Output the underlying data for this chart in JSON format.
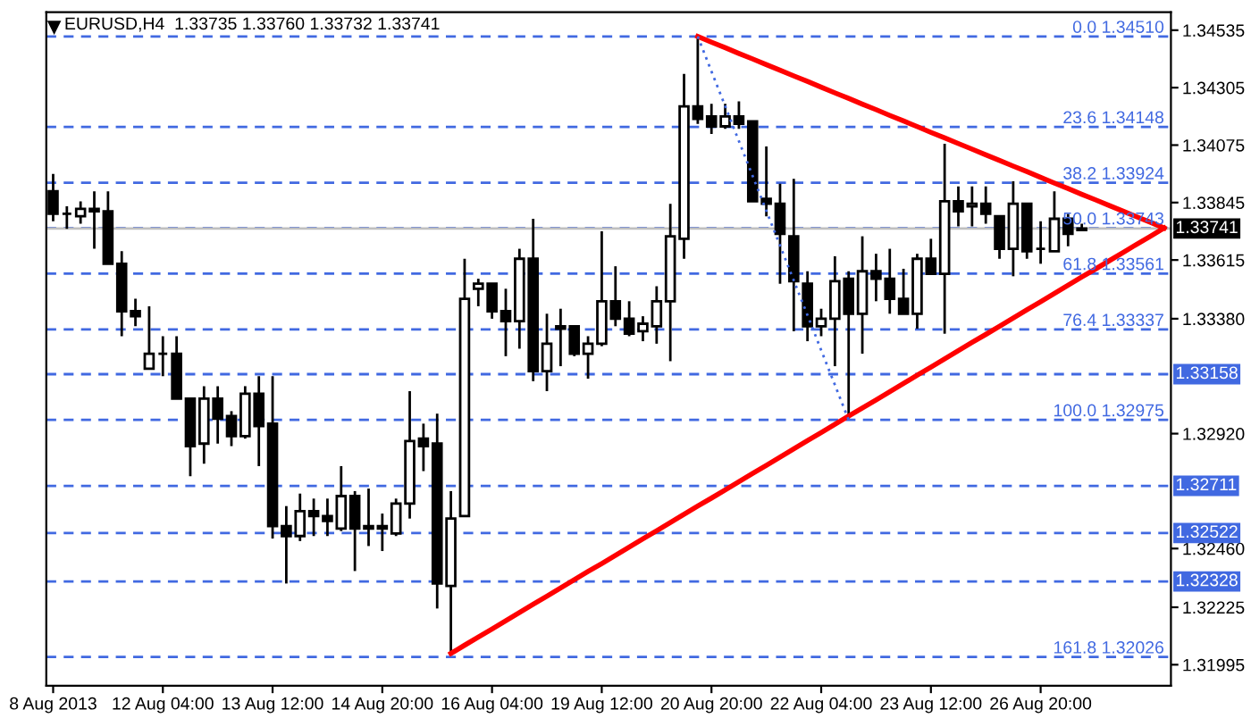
{
  "chart_data": {
    "type": "candlestick",
    "title": "EURUSD,H4  1.33735 1.33760 1.33732 1.33741",
    "categories": [
      "8 Aug 2013",
      null,
      null,
      null,
      null,
      null,
      null,
      null,
      "12 Aug 04:00",
      null,
      null,
      null,
      null,
      null,
      null,
      null,
      "13 Aug 12:00",
      null,
      null,
      null,
      null,
      null,
      null,
      null,
      "14 Aug 20:00",
      null,
      null,
      null,
      null,
      null,
      null,
      null,
      "16 Aug 04:00",
      null,
      null,
      null,
      null,
      null,
      null,
      null,
      "19 Aug 12:00",
      null,
      null,
      null,
      null,
      null,
      null,
      null,
      "20 Aug 20:00",
      null,
      null,
      null,
      null,
      null,
      null,
      null,
      "22 Aug 04:00",
      null,
      null,
      null,
      null,
      null,
      null,
      null,
      "23 Aug 12:00",
      null,
      null,
      null,
      null,
      null,
      null,
      null,
      "26 Aug 20:00",
      null,
      null,
      null,
      null,
      null,
      null,
      null,
      null,
      null
    ],
    "ohlc": [
      [
        1.3389,
        1.3396,
        1.3377,
        1.338
      ],
      [
        1.338,
        1.3383,
        1.3374,
        1.338
      ],
      [
        1.3379,
        1.3385,
        1.3376,
        1.3382
      ],
      [
        1.3382,
        1.3389,
        1.3366,
        1.3381
      ],
      [
        1.3381,
        1.3389,
        1.336,
        1.336
      ],
      [
        1.336,
        1.3365,
        1.3331,
        1.3341
      ],
      [
        1.3341,
        1.3346,
        1.3335,
        1.3339
      ],
      [
        1.3318,
        1.3343,
        1.3318,
        1.3324
      ],
      [
        1.3324,
        1.3331,
        1.3315,
        1.3324
      ],
      [
        1.3324,
        1.3331,
        1.3306,
        1.3306
      ],
      [
        1.3306,
        1.3306,
        1.3275,
        1.3287
      ],
      [
        1.3288,
        1.3311,
        1.328,
        1.3306
      ],
      [
        1.3306,
        1.3311,
        1.3288,
        1.3298
      ],
      [
        1.3299,
        1.3301,
        1.3287,
        1.3291
      ],
      [
        1.3291,
        1.3311,
        1.329,
        1.3308
      ],
      [
        1.3308,
        1.3315,
        1.3279,
        1.3295
      ],
      [
        1.3296,
        1.3315,
        1.325,
        1.3255
      ],
      [
        1.3255,
        1.3263,
        1.3232,
        1.3251
      ],
      [
        1.3251,
        1.3268,
        1.3249,
        1.3261
      ],
      [
        1.3261,
        1.3266,
        1.3251,
        1.3259
      ],
      [
        1.3259,
        1.3266,
        1.3251,
        1.3257
      ],
      [
        1.3254,
        1.3279,
        1.3253,
        1.3267
      ],
      [
        1.3267,
        1.3269,
        1.3237,
        1.3254
      ],
      [
        1.3255,
        1.327,
        1.3247,
        1.3254
      ],
      [
        1.3255,
        1.326,
        1.3245,
        1.3254
      ],
      [
        1.3252,
        1.3266,
        1.3251,
        1.3264
      ],
      [
        1.3264,
        1.3309,
        1.3258,
        1.3289
      ],
      [
        1.329,
        1.3296,
        1.3277,
        1.3287
      ],
      [
        1.3288,
        1.33,
        1.3222,
        1.3232
      ],
      [
        1.3231,
        1.3269,
        1.3204,
        1.3258
      ],
      [
        1.3259,
        1.3362,
        1.3259,
        1.3346
      ],
      [
        1.335,
        1.3354,
        1.3343,
        1.3352
      ],
      [
        1.3352,
        1.3352,
        1.3338,
        1.3341
      ],
      [
        1.3341,
        1.335,
        1.3323,
        1.3337
      ],
      [
        1.3337,
        1.3366,
        1.3326,
        1.3362
      ],
      [
        1.3362,
        1.3378,
        1.3313,
        1.3317
      ],
      [
        1.3317,
        1.334,
        1.3309,
        1.3328
      ],
      [
        1.3335,
        1.3342,
        1.3319,
        1.3334
      ],
      [
        1.3335,
        1.3335,
        1.3323,
        1.3324
      ],
      [
        1.3324,
        1.3331,
        1.3314,
        1.3328
      ],
      [
        1.3328,
        1.3373,
        1.3327,
        1.3345
      ],
      [
        1.3345,
        1.3359,
        1.3335,
        1.3338
      ],
      [
        1.3338,
        1.3345,
        1.3331,
        1.3332
      ],
      [
        1.3333,
        1.3339,
        1.3329,
        1.3336
      ],
      [
        1.3335,
        1.3351,
        1.3328,
        1.3345
      ],
      [
        1.3345,
        1.3384,
        1.3321,
        1.3371
      ],
      [
        1.337,
        1.3436,
        1.3362,
        1.3423
      ],
      [
        1.3423,
        1.3451,
        1.3416,
        1.3418
      ],
      [
        1.3419,
        1.3424,
        1.3412,
        1.3415
      ],
      [
        1.3415,
        1.3424,
        1.3414,
        1.3419
      ],
      [
        1.3419,
        1.3425,
        1.3414,
        1.3416
      ],
      [
        1.3417,
        1.3417,
        1.3385,
        1.3385
      ],
      [
        1.3386,
        1.3407,
        1.3379,
        1.3384
      ],
      [
        1.3384,
        1.3392,
        1.3352,
        1.3372
      ],
      [
        1.3371,
        1.3394,
        1.3333,
        1.3353
      ],
      [
        1.3352,
        1.3357,
        1.3329,
        1.3335
      ],
      [
        1.3335,
        1.3342,
        1.3331,
        1.3338
      ],
      [
        1.3338,
        1.3363,
        1.3319,
        1.3353
      ],
      [
        1.3354,
        1.3357,
        1.3298,
        1.334
      ],
      [
        1.334,
        1.3371,
        1.3324,
        1.3357
      ],
      [
        1.3357,
        1.3364,
        1.3345,
        1.3354
      ],
      [
        1.3354,
        1.3366,
        1.334,
        1.3346
      ],
      [
        1.3346,
        1.3358,
        1.334,
        1.334
      ],
      [
        1.334,
        1.3364,
        1.3334,
        1.3362
      ],
      [
        1.3362,
        1.337,
        1.3356,
        1.3356
      ],
      [
        1.3356,
        1.3408,
        1.3332,
        1.3385
      ],
      [
        1.3385,
        1.3391,
        1.3375,
        1.3381
      ],
      [
        1.3383,
        1.3391,
        1.3375,
        1.3384
      ],
      [
        1.3384,
        1.3391,
        1.3376,
        1.338
      ],
      [
        1.3379,
        1.3379,
        1.3362,
        1.3366
      ],
      [
        1.3366,
        1.3393,
        1.3355,
        1.3384
      ],
      [
        1.3384,
        1.3384,
        1.3362,
        1.3365
      ],
      [
        1.3366,
        1.3377,
        1.336,
        1.3366
      ],
      [
        1.3365,
        1.3389,
        1.3365,
        1.3378
      ],
      [
        1.3378,
        1.338,
        1.3367,
        1.3372
      ],
      [
        1.33735,
        1.3376,
        1.33732,
        1.33741
      ],
      null,
      null,
      null,
      null,
      null,
      null
    ],
    "series": [
      {
        "type": "line",
        "color": "#ff0000",
        "line_style": "solid",
        "values": [
          null,
          null,
          null,
          null,
          null,
          null,
          null,
          null,
          null,
          null,
          null,
          null,
          null,
          null,
          null,
          null,
          null,
          null,
          null,
          null,
          null,
          null,
          null,
          null,
          null,
          null,
          null,
          null,
          null,
          1.3204,
          1.32073,
          1.32106,
          1.32138,
          1.32171,
          1.32204,
          1.32237,
          1.32269,
          1.32302,
          1.32335,
          1.32368,
          1.324,
          1.32433,
          1.32466,
          1.32499,
          1.32531,
          1.32564,
          1.32597,
          1.3263,
          1.32662,
          1.32695,
          1.32728,
          1.32761,
          1.32793,
          1.32826,
          1.32859,
          1.32892,
          1.32924,
          1.32957,
          1.3299,
          1.33023,
          1.33055,
          1.33088,
          1.33121,
          1.33154,
          1.33186,
          1.33219,
          1.33252,
          1.33285,
          1.33317,
          1.3335,
          1.33383,
          1.33416,
          1.33448,
          1.33481,
          1.33514,
          1.33547,
          1.33579,
          1.33612,
          1.33645,
          1.33678,
          1.3371,
          1.33743
        ]
      },
      {
        "type": "line",
        "color": "#ff0000",
        "line_style": "solid",
        "values": [
          null,
          null,
          null,
          null,
          null,
          null,
          null,
          null,
          null,
          null,
          null,
          null,
          null,
          null,
          null,
          null,
          null,
          null,
          null,
          null,
          null,
          null,
          null,
          null,
          null,
          null,
          null,
          null,
          null,
          null,
          null,
          null,
          null,
          null,
          null,
          null,
          null,
          null,
          null,
          null,
          null,
          null,
          null,
          null,
          null,
          null,
          null,
          1.3451,
          1.34487,
          1.34465,
          1.34442,
          1.3442,
          1.34397,
          1.34375,
          1.34352,
          1.3433,
          1.34307,
          1.34284,
          1.34262,
          1.34239,
          1.34217,
          1.34194,
          1.34172,
          1.34149,
          1.34126,
          1.34104,
          1.34081,
          1.34059,
          1.34036,
          1.34014,
          1.33991,
          1.33969,
          1.33946,
          1.33923,
          1.33901,
          1.33878,
          1.33856,
          1.33833,
          1.33811,
          1.33788,
          1.33766,
          1.33743
        ]
      },
      {
        "type": "line",
        "color": "#4169e1",
        "line_style": "dotted",
        "values": [
          null,
          null,
          null,
          null,
          null,
          null,
          null,
          null,
          null,
          null,
          null,
          null,
          null,
          null,
          null,
          null,
          null,
          null,
          null,
          null,
          null,
          null,
          null,
          null,
          null,
          null,
          null,
          null,
          null,
          null,
          null,
          null,
          null,
          null,
          null,
          null,
          null,
          null,
          null,
          null,
          null,
          null,
          null,
          null,
          null,
          null,
          null,
          1.3451,
          1.3437,
          1.34231,
          1.34091,
          1.33952,
          1.33812,
          1.33673,
          1.33533,
          1.33394,
          1.33254,
          1.33115,
          1.32975,
          null,
          null,
          null,
          null,
          null,
          null,
          null,
          null,
          null,
          null,
          null,
          null,
          null,
          null,
          null,
          null,
          null,
          null,
          null,
          null,
          null,
          null,
          null
        ]
      }
    ],
    "annotations": [
      {
        "text": "0.0 1.34510",
        "y": 1.3451
      },
      {
        "text": "23.6 1.34148",
        "y": 1.34148
      },
      {
        "text": "38.2 1.33924",
        "y": 1.33924
      },
      {
        "text": "50.0 1.33743",
        "y": 1.33743
      },
      {
        "text": "61.8 1.33561",
        "y": 1.33561
      },
      {
        "text": "76.4 1.33337",
        "y": 1.33337
      },
      {
        "text": "100.0 1.32975",
        "y": 1.32975
      },
      {
        "text": "161.8 1.32026",
        "y": 1.32026
      }
    ],
    "ref_lines": [
      {
        "axis": "y",
        "value": 1.3451,
        "color": "#4169e1",
        "line_style": "dashed"
      },
      {
        "axis": "y",
        "value": 1.34148,
        "color": "#4169e1",
        "line_style": "dashed"
      },
      {
        "axis": "y",
        "value": 1.33924,
        "color": "#4169e1",
        "line_style": "dashed"
      },
      {
        "axis": "y",
        "value": 1.33743,
        "color": "#4169e1",
        "line_style": "dashed"
      },
      {
        "axis": "y",
        "value": 1.33561,
        "color": "#4169e1",
        "line_style": "dashed"
      },
      {
        "axis": "y",
        "value": 1.33337,
        "color": "#4169e1",
        "line_style": "dashed"
      },
      {
        "axis": "y",
        "value": 1.32975,
        "color": "#4169e1",
        "line_style": "dashed"
      },
      {
        "axis": "y",
        "value": 1.32026,
        "color": "#4169e1",
        "line_style": "dashed"
      },
      {
        "axis": "y",
        "value": 1.33741,
        "label": "1.33741",
        "color": "#c0c0c0",
        "line_style": "solid"
      },
      {
        "axis": "y",
        "value": 1.33158,
        "label": "1.33158",
        "color": "#4169e1",
        "line_style": "dashed"
      },
      {
        "axis": "y",
        "value": 1.32711,
        "label": "1.32711",
        "color": "#4169e1",
        "line_style": "dashed"
      },
      {
        "axis": "y",
        "value": 1.32522,
        "label": "1.32522",
        "color": "#4169e1",
        "line_style": "dashed"
      },
      {
        "axis": "y",
        "value": 1.32328,
        "label": "1.32328",
        "color": "#4169e1",
        "line_style": "dashed"
      }
    ],
    "ylim": [
      1.31911,
      1.34607
    ],
    "yticks": [
      1.34535,
      1.34305,
      1.34075,
      1.33845,
      1.33615,
      {
        "value": 1.3338,
        "label": "1.33380"
      },
      {
        "value": 1.3292,
        "label": "1.32920"
      },
      {
        "value": 1.3246,
        "label": "1.32460"
      },
      1.32225,
      1.31995
    ],
    "grid": false
  }
}
